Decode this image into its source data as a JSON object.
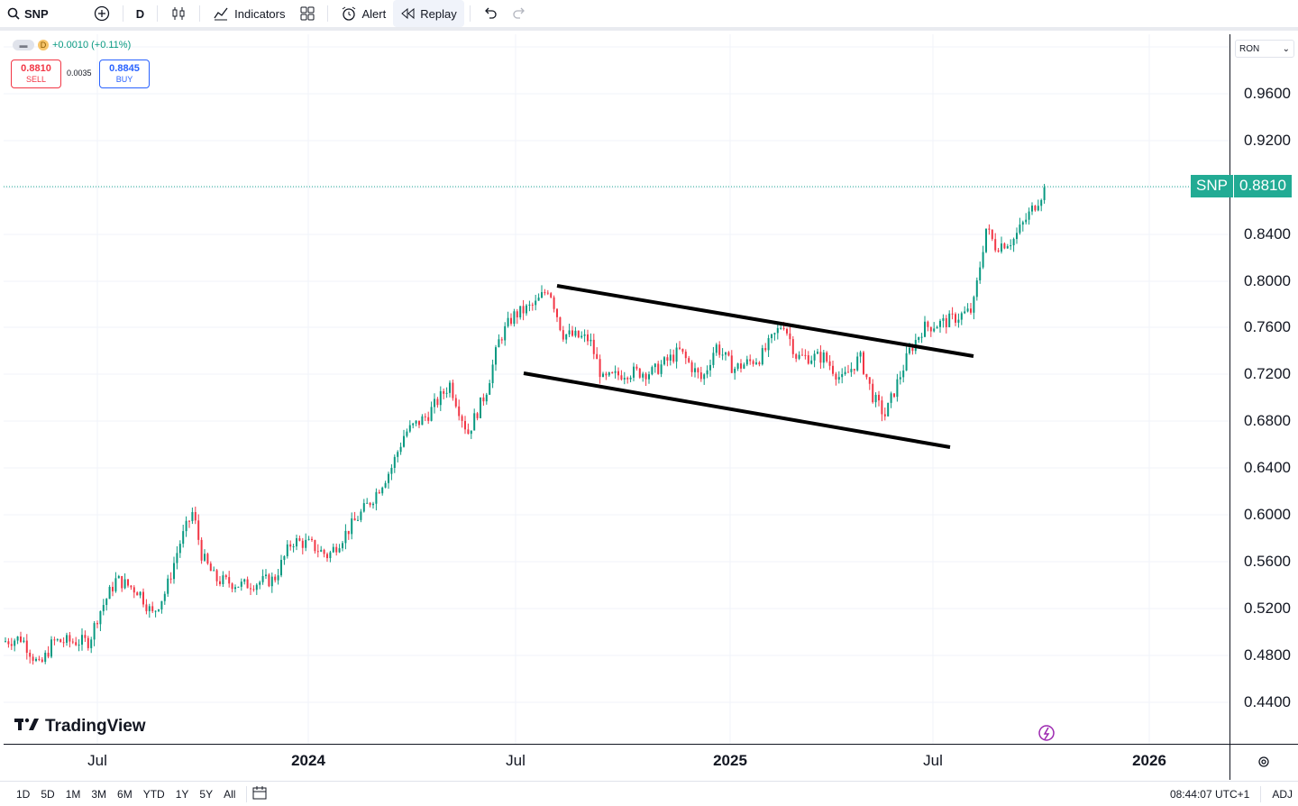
{
  "toolbar": {
    "symbol": "SNP",
    "interval": "D",
    "indicators_label": "Indicators",
    "alert_label": "Alert",
    "replay_label": "Replay"
  },
  "legend": {
    "interval": "D",
    "change": "+0.0010 (+0.11%)"
  },
  "trade": {
    "sell_price": "0.8810",
    "sell_label": "SELL",
    "spread": "0.0035",
    "buy_price": "0.8845",
    "buy_label": "BUY"
  },
  "price_axis": {
    "currency": "RON",
    "ticks": [
      "0.9600",
      "0.9200",
      "0.8400",
      "0.8000",
      "0.7600",
      "0.7200",
      "0.6800",
      "0.6400",
      "0.6000",
      "0.5600",
      "0.5200",
      "0.4800",
      "0.4400"
    ],
    "current_symbol": "SNP",
    "current_price": "0.8810"
  },
  "time_axis": {
    "labels": [
      {
        "text": "Jul",
        "year": false
      },
      {
        "text": "2024",
        "year": true
      },
      {
        "text": "Jul",
        "year": false
      },
      {
        "text": "2025",
        "year": true
      },
      {
        "text": "Jul",
        "year": false
      },
      {
        "text": "2026",
        "year": true
      }
    ]
  },
  "brand": "TradingView",
  "bottom_bar": {
    "ranges": [
      "1D",
      "5D",
      "1M",
      "3M",
      "6M",
      "YTD",
      "1Y",
      "5Y",
      "All"
    ],
    "clock": "08:44:07 UTC+1",
    "adj": "ADJ"
  },
  "colors": {
    "up": "#089981",
    "down": "#f23645",
    "current": "#22ab94",
    "trendline": "#000000"
  }
}
